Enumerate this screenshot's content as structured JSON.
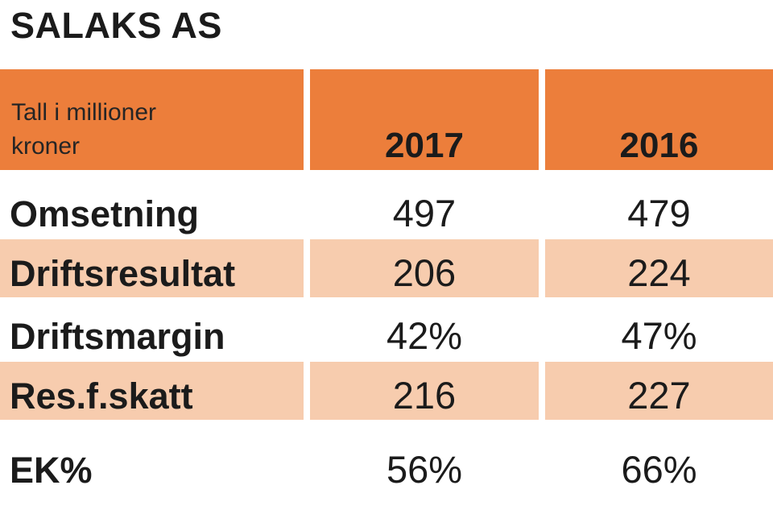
{
  "title": "SALAKS AS",
  "table": {
    "header": {
      "unit_label": "Tall i millioner kroner",
      "years": [
        "2017",
        "2016"
      ]
    },
    "rows": [
      {
        "label": "Omsetning",
        "values": [
          "497",
          "479"
        ]
      },
      {
        "label": "Driftsresultat",
        "values": [
          "206",
          "224"
        ]
      },
      {
        "label": "Driftsmargin",
        "values": [
          "42%",
          "47%"
        ]
      },
      {
        "label": "Res.f.skatt",
        "values": [
          "216",
          "227"
        ]
      },
      {
        "label": "EK%",
        "values": [
          "56%",
          "66%"
        ]
      }
    ]
  },
  "colors": {
    "header_bg": "#EC7E3B",
    "band_bg": "#F7CCAE",
    "text": "#1b1b1b",
    "unit_text": "#252525"
  },
  "chart_data": {
    "type": "table",
    "title": "SALAKS AS",
    "unit_note": "Tall i millioner kroner",
    "columns": [
      "2017",
      "2016"
    ],
    "rows": [
      {
        "label": "Omsetning",
        "values": [
          "497",
          "479"
        ]
      },
      {
        "label": "Driftsresultat",
        "values": [
          "206",
          "224"
        ]
      },
      {
        "label": "Driftsmargin",
        "values": [
          "42%",
          "47%"
        ]
      },
      {
        "label": "Res.f.skatt",
        "values": [
          "216",
          "227"
        ]
      },
      {
        "label": "EK%",
        "values": [
          "56%",
          "66%"
        ]
      }
    ]
  }
}
